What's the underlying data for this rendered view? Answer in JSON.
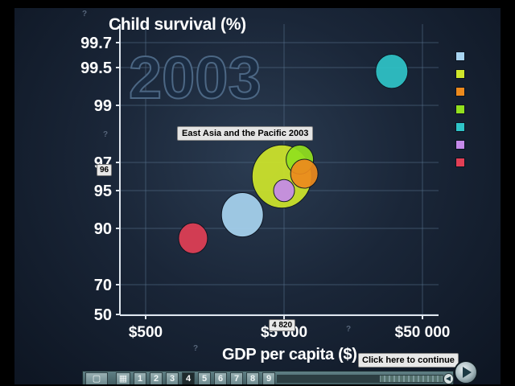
{
  "chart_data": {
    "type": "scatter",
    "title": "",
    "year": "2003",
    "xlabel": "GDP per capita ($)",
    "ylabel": "Child survival (%)",
    "x_scale": "log",
    "x_ticks": [
      {
        "value": 500,
        "label": "$500"
      },
      {
        "value": 5000,
        "label": "$5 000"
      },
      {
        "value": 50000,
        "label": "$50 000"
      }
    ],
    "xlim": [
      300,
      65000
    ],
    "y_ticks": [
      {
        "value": 50,
        "label": "50"
      },
      {
        "value": 70,
        "label": "70"
      },
      {
        "value": 90,
        "label": "90"
      },
      {
        "value": 95,
        "label": "95"
      },
      {
        "value": 97,
        "label": "97"
      },
      {
        "value": 99,
        "label": "99"
      },
      {
        "value": 99.5,
        "label": "99.5"
      },
      {
        "value": 99.7,
        "label": "99.7"
      }
    ],
    "grid": true,
    "legend_position": "right",
    "bubbles": [
      {
        "color": "#a8d4f0",
        "x": 2500,
        "y": 91.8,
        "size": 26,
        "label": ""
      },
      {
        "color": "#e23f55",
        "x": 1100,
        "y": 86.5,
        "size": 18,
        "label": ""
      },
      {
        "color": "#cfe62b",
        "x": 4820,
        "y": 96.0,
        "size": 37,
        "label": "East Asia and the Pacific 2003"
      },
      {
        "color": "#92e01e",
        "x": 6500,
        "y": 97.1,
        "size": 17,
        "label": ""
      },
      {
        "color": "#ed8a1d",
        "x": 7000,
        "y": 96.2,
        "size": 17,
        "label": ""
      },
      {
        "color": "#c58aea",
        "x": 5000,
        "y": 95.0,
        "size": 13,
        "label": ""
      },
      {
        "color": "#2fc4c8",
        "x": 30000,
        "y": 99.45,
        "size": 20,
        "label": ""
      }
    ],
    "legend_colors": [
      "#a8d4f0",
      "#cfe62b",
      "#ed8a1d",
      "#92e01e",
      "#2fc4c8",
      "#c58aea",
      "#e23f55"
    ],
    "markers": {
      "x_value": "4 820",
      "y_value": "96"
    }
  },
  "tooltip": "East Asia and the Pacific 2003",
  "continue_label": "Click here to continue",
  "toolbar": {
    "pages": [
      "1",
      "2",
      "3",
      "4",
      "5",
      "6",
      "7",
      "8",
      "9"
    ],
    "active_page": "4",
    "progress": 0.62
  }
}
